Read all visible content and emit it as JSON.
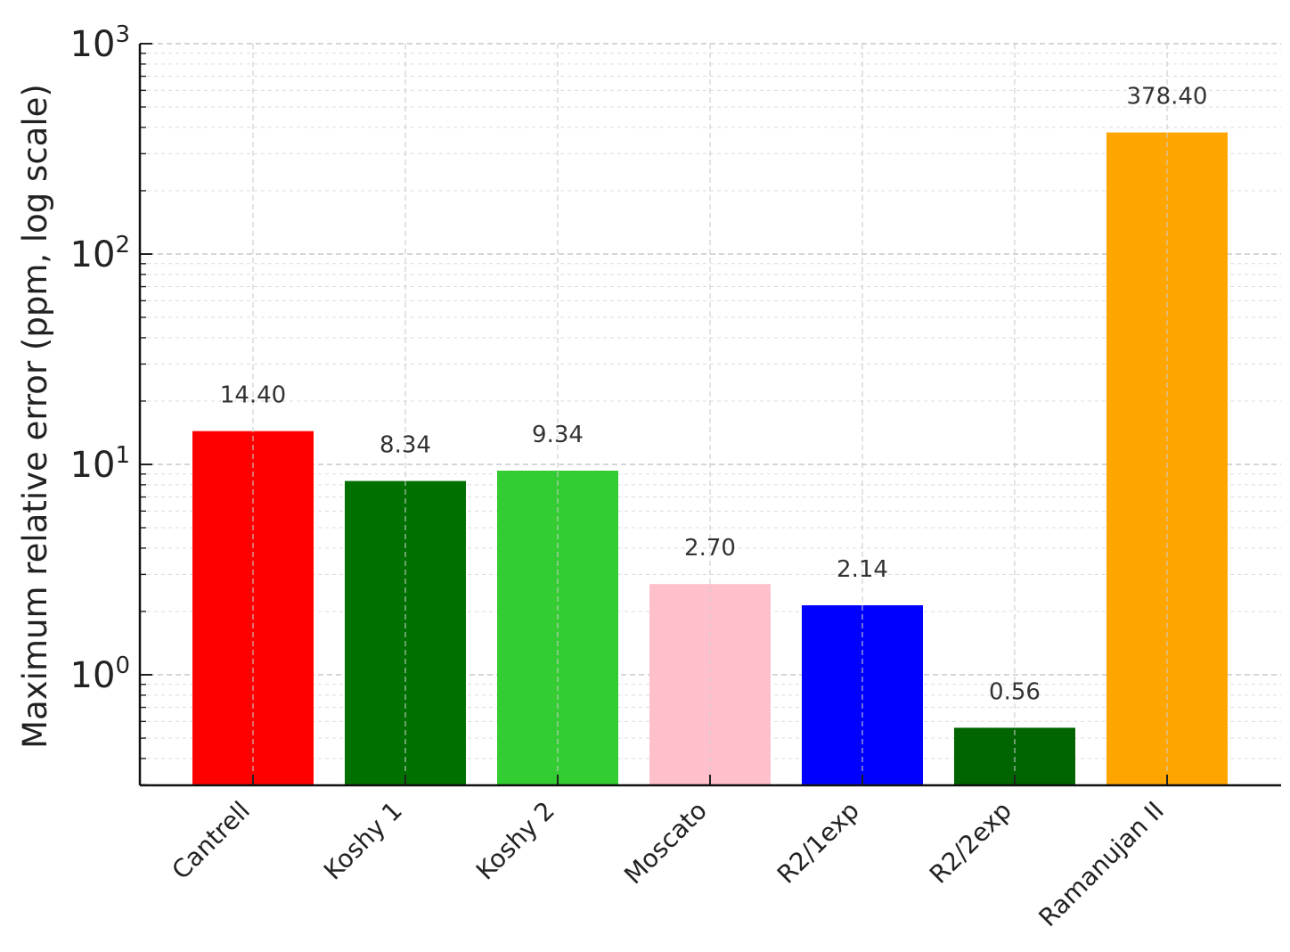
{
  "chart_data": {
    "type": "bar",
    "title": "",
    "xlabel": "",
    "ylabel": "Maximum relative error (ppm, log scale)",
    "yscale": "log",
    "ylim": [
      0.3,
      1000
    ],
    "ytick_values": [
      1,
      10,
      100,
      1000
    ],
    "ytick_labels": [
      {
        "base": "10",
        "exp": "0"
      },
      {
        "base": "10",
        "exp": "1"
      },
      {
        "base": "10",
        "exp": "2"
      },
      {
        "base": "10",
        "exp": "3"
      }
    ],
    "grid": true,
    "legend": "none",
    "categories": [
      "Cantrell",
      "Koshy 1",
      "Koshy 2",
      "Moscato",
      "R2/1exp",
      "R2/2exp",
      "Ramanujan II"
    ],
    "values": [
      14.4,
      8.34,
      9.34,
      2.7,
      2.14,
      0.56,
      378.4
    ],
    "data_labels": [
      "14.40",
      "8.34",
      "9.34",
      "2.70",
      "2.14",
      "0.56",
      "378.40"
    ],
    "colors": [
      "#ff0000",
      "#007000",
      "#33cc33",
      "#ffc0cb",
      "#0000ff",
      "#006400",
      "#ffa500"
    ]
  }
}
